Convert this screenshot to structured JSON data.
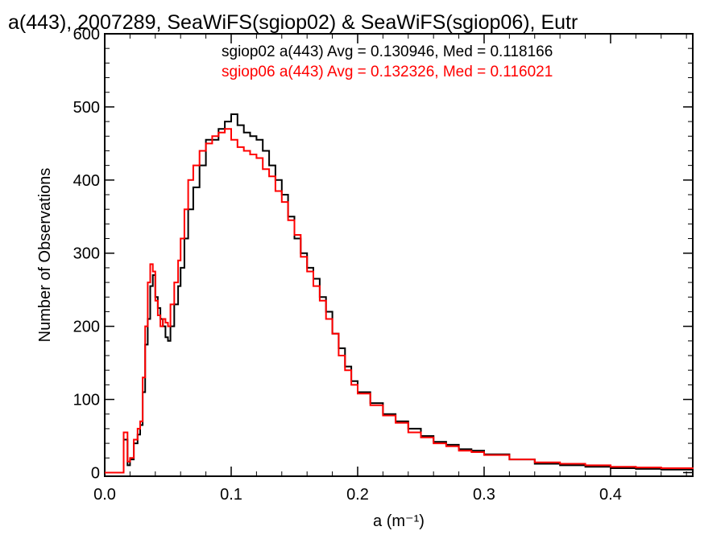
{
  "chart_data": {
    "type": "histogram",
    "title": "a(443), 2007289, SeaWiFS(sgiop02) & SeaWiFS(sgiop06), Eutr",
    "xlabel": "a (m⁻¹)",
    "ylabel": "Number of Observations",
    "xlim": [
      0.0,
      0.465
    ],
    "ylim": [
      -5,
      600
    ],
    "x_ticks": [
      "0.0",
      "0.1",
      "0.2",
      "0.3",
      "0.4"
    ],
    "x_tick_values": [
      0.0,
      0.1,
      0.2,
      0.3,
      0.4
    ],
    "y_ticks": [
      "0",
      "100",
      "200",
      "300",
      "400",
      "500",
      "600"
    ],
    "y_tick_values": [
      0,
      100,
      200,
      300,
      400,
      500,
      600
    ],
    "grid": false,
    "legend_position": "top-right",
    "series": [
      {
        "name": "sgiop02",
        "color": "#000000",
        "legend": "sgiop02 a(443) Avg = 0.130946, Med = 0.118166",
        "points": [
          [
            0.0,
            0
          ],
          [
            0.01,
            0
          ],
          [
            0.015,
            45
          ],
          [
            0.018,
            10
          ],
          [
            0.02,
            18
          ],
          [
            0.023,
            40
          ],
          [
            0.026,
            52
          ],
          [
            0.028,
            65
          ],
          [
            0.03,
            110
          ],
          [
            0.032,
            175
          ],
          [
            0.034,
            210
          ],
          [
            0.036,
            255
          ],
          [
            0.038,
            270
          ],
          [
            0.04,
            240
          ],
          [
            0.042,
            225
          ],
          [
            0.044,
            210
          ],
          [
            0.046,
            200
          ],
          [
            0.048,
            185
          ],
          [
            0.05,
            180
          ],
          [
            0.052,
            200
          ],
          [
            0.055,
            230
          ],
          [
            0.058,
            255
          ],
          [
            0.06,
            280
          ],
          [
            0.063,
            320
          ],
          [
            0.066,
            360
          ],
          [
            0.07,
            390
          ],
          [
            0.075,
            420
          ],
          [
            0.08,
            455
          ],
          [
            0.085,
            455
          ],
          [
            0.09,
            470
          ],
          [
            0.095,
            480
          ],
          [
            0.1,
            490
          ],
          [
            0.105,
            475
          ],
          [
            0.11,
            465
          ],
          [
            0.115,
            460
          ],
          [
            0.12,
            455
          ],
          [
            0.125,
            440
          ],
          [
            0.13,
            420
          ],
          [
            0.135,
            400
          ],
          [
            0.14,
            380
          ],
          [
            0.145,
            350
          ],
          [
            0.15,
            320
          ],
          [
            0.155,
            300
          ],
          [
            0.16,
            280
          ],
          [
            0.165,
            265
          ],
          [
            0.17,
            240
          ],
          [
            0.175,
            220
          ],
          [
            0.18,
            190
          ],
          [
            0.185,
            170
          ],
          [
            0.19,
            145
          ],
          [
            0.195,
            125
          ],
          [
            0.2,
            110
          ],
          [
            0.21,
            95
          ],
          [
            0.22,
            80
          ],
          [
            0.23,
            70
          ],
          [
            0.24,
            60
          ],
          [
            0.25,
            50
          ],
          [
            0.26,
            42
          ],
          [
            0.27,
            38
          ],
          [
            0.28,
            32
          ],
          [
            0.29,
            30
          ],
          [
            0.3,
            25
          ],
          [
            0.32,
            18
          ],
          [
            0.34,
            12
          ],
          [
            0.36,
            10
          ],
          [
            0.38,
            8
          ],
          [
            0.4,
            6
          ],
          [
            0.42,
            5
          ],
          [
            0.44,
            4
          ],
          [
            0.465,
            3
          ]
        ]
      },
      {
        "name": "sgiop06",
        "color": "#ff0000",
        "legend": "sgiop06 a(443) Avg = 0.132326, Med = 0.116021",
        "points": [
          [
            0.0,
            0
          ],
          [
            0.01,
            0
          ],
          [
            0.015,
            55
          ],
          [
            0.018,
            15
          ],
          [
            0.02,
            20
          ],
          [
            0.023,
            45
          ],
          [
            0.026,
            60
          ],
          [
            0.028,
            70
          ],
          [
            0.03,
            130
          ],
          [
            0.032,
            200
          ],
          [
            0.034,
            260
          ],
          [
            0.036,
            285
          ],
          [
            0.038,
            275
          ],
          [
            0.04,
            235
          ],
          [
            0.042,
            215
          ],
          [
            0.044,
            200
          ],
          [
            0.046,
            210
          ],
          [
            0.048,
            205
          ],
          [
            0.05,
            200
          ],
          [
            0.052,
            230
          ],
          [
            0.055,
            260
          ],
          [
            0.058,
            290
          ],
          [
            0.06,
            320
          ],
          [
            0.063,
            360
          ],
          [
            0.066,
            400
          ],
          [
            0.07,
            420
          ],
          [
            0.075,
            440
          ],
          [
            0.08,
            450
          ],
          [
            0.085,
            460
          ],
          [
            0.09,
            465
          ],
          [
            0.095,
            470
          ],
          [
            0.1,
            455
          ],
          [
            0.105,
            445
          ],
          [
            0.11,
            440
          ],
          [
            0.115,
            435
          ],
          [
            0.12,
            430
          ],
          [
            0.125,
            415
          ],
          [
            0.13,
            405
          ],
          [
            0.135,
            385
          ],
          [
            0.14,
            370
          ],
          [
            0.145,
            345
          ],
          [
            0.15,
            325
          ],
          [
            0.155,
            295
          ],
          [
            0.16,
            275
          ],
          [
            0.165,
            255
          ],
          [
            0.17,
            235
          ],
          [
            0.175,
            210
          ],
          [
            0.18,
            190
          ],
          [
            0.185,
            160
          ],
          [
            0.19,
            140
          ],
          [
            0.195,
            120
          ],
          [
            0.2,
            108
          ],
          [
            0.21,
            92
          ],
          [
            0.22,
            78
          ],
          [
            0.23,
            68
          ],
          [
            0.24,
            55
          ],
          [
            0.25,
            48
          ],
          [
            0.26,
            40
          ],
          [
            0.27,
            36
          ],
          [
            0.28,
            30
          ],
          [
            0.29,
            28
          ],
          [
            0.3,
            24
          ],
          [
            0.32,
            18
          ],
          [
            0.34,
            14
          ],
          [
            0.36,
            12
          ],
          [
            0.38,
            10
          ],
          [
            0.4,
            8
          ],
          [
            0.42,
            7
          ],
          [
            0.44,
            6
          ],
          [
            0.465,
            5
          ]
        ]
      }
    ]
  }
}
